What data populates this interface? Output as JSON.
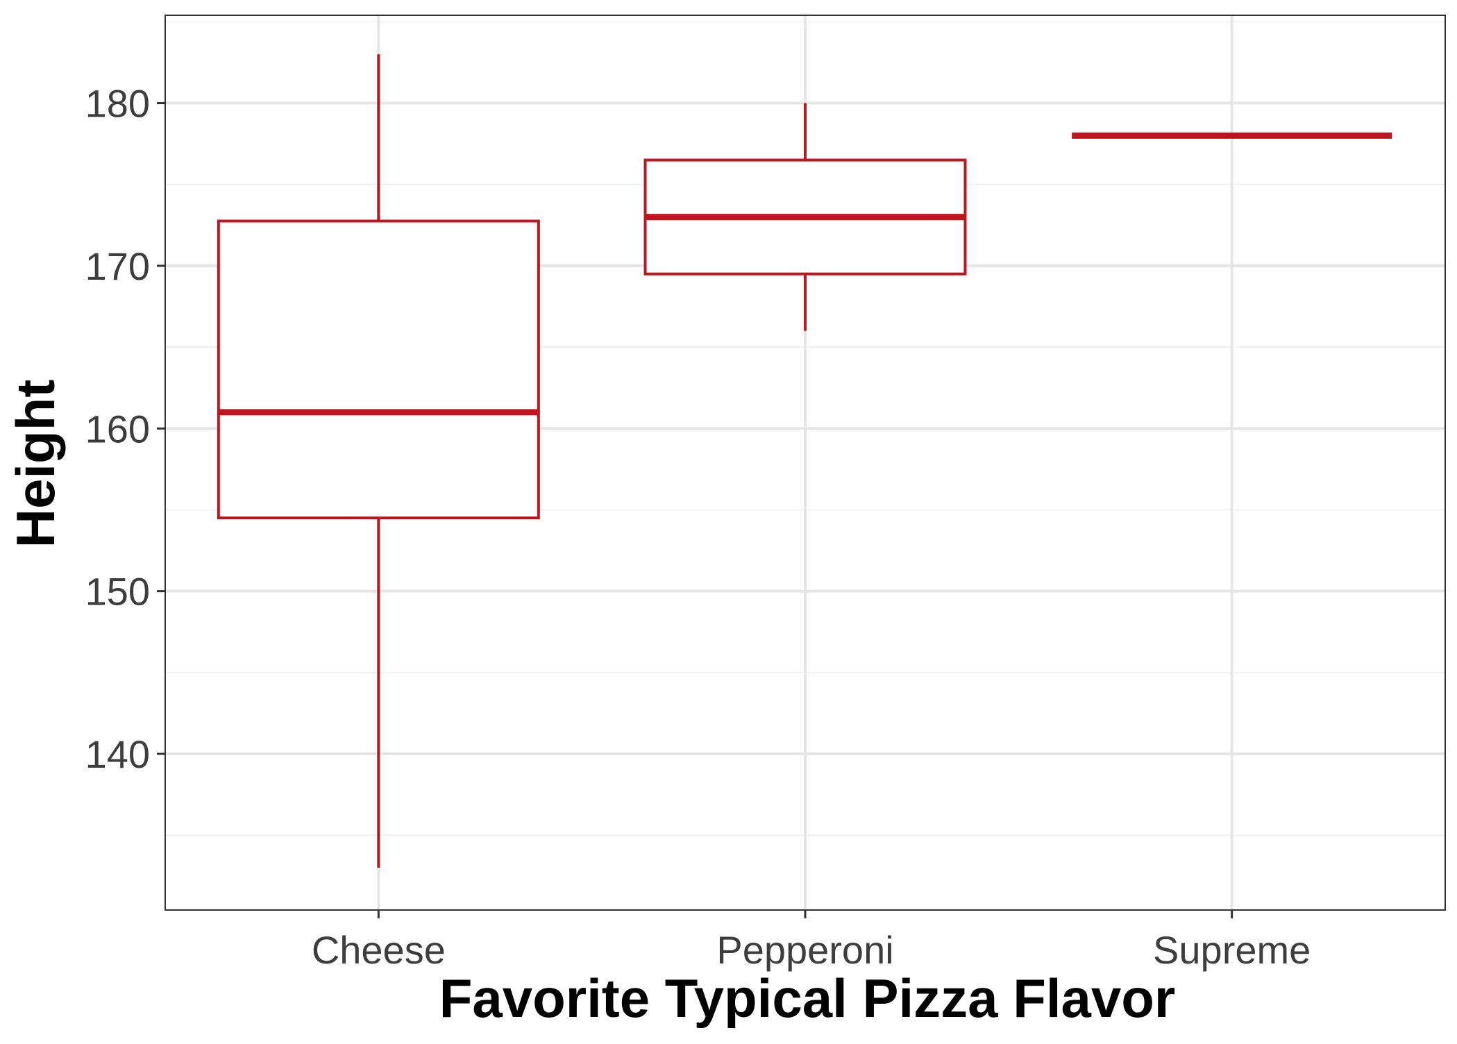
{
  "chart_data": {
    "type": "box",
    "title": "",
    "xlabel": "Favorite Typical Pizza Flavor",
    "ylabel": "Height",
    "ylim": [
      130.4,
      185.4
    ],
    "yticks": [
      140,
      150,
      160,
      170,
      180
    ],
    "grid": true,
    "legend": "none",
    "categories": [
      "Cheese",
      "Pepperoni",
      "Supreme"
    ],
    "boxes": [
      {
        "category": "Cheese",
        "min": 133,
        "q1": 154.5,
        "median": 161,
        "q3": 172.75,
        "max": 183
      },
      {
        "category": "Pepperoni",
        "min": 166,
        "q1": 169.5,
        "median": 173,
        "q3": 176.5,
        "max": 180
      },
      {
        "category": "Supreme",
        "min": 178,
        "q1": 178,
        "median": 178,
        "q3": 178,
        "max": 178
      }
    ]
  },
  "style": {
    "box_color": "#c0141f",
    "grid_major": "#e5e5e5",
    "grid_minor": "#f0f0f0",
    "panel_border": "#333333",
    "background": "#ffffff"
  }
}
